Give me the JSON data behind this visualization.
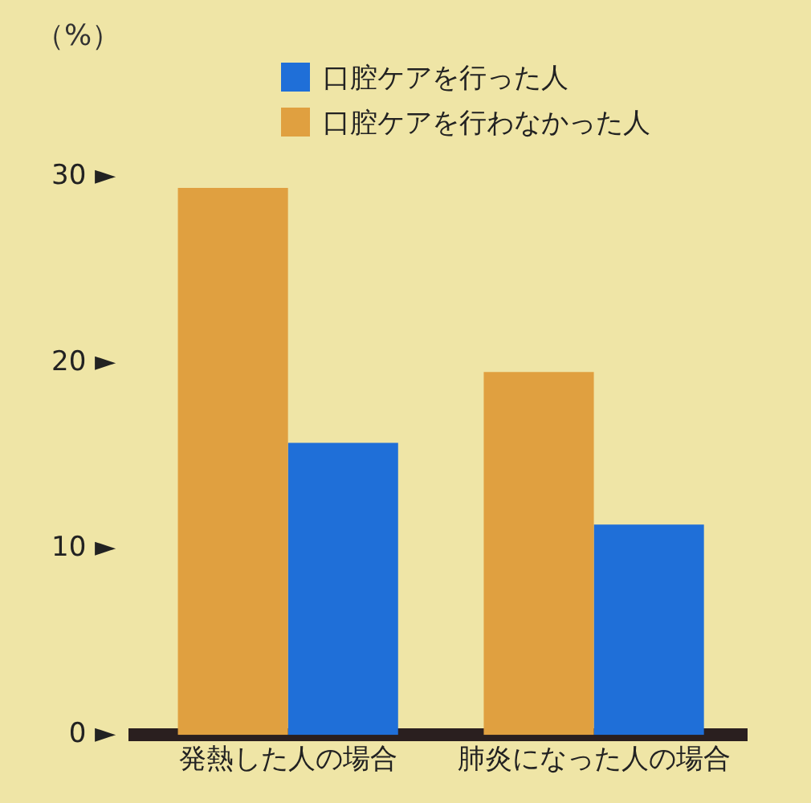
{
  "chart_data": {
    "type": "bar",
    "ylabel": "（%）",
    "categories": [
      "発熱した人の場合",
      "肺炎になった人の場合"
    ],
    "series": [
      {
        "name": "口腔ケアを行わなかった人",
        "color": "#e0a040",
        "values": [
          29.4,
          19.5
        ]
      },
      {
        "name": "口腔ケアを行った人",
        "color": "#1f6fd8",
        "values": [
          15.7,
          11.3
        ]
      }
    ],
    "ylim": [
      0,
      30
    ],
    "yticks": [
      {
        "value": 0,
        "label": "0 ►"
      },
      {
        "value": 10,
        "label": "10 ►"
      },
      {
        "value": 20,
        "label": "20 ►"
      },
      {
        "value": 30,
        "label": "30 ►"
      }
    ],
    "grid": false,
    "legend": "top right"
  }
}
